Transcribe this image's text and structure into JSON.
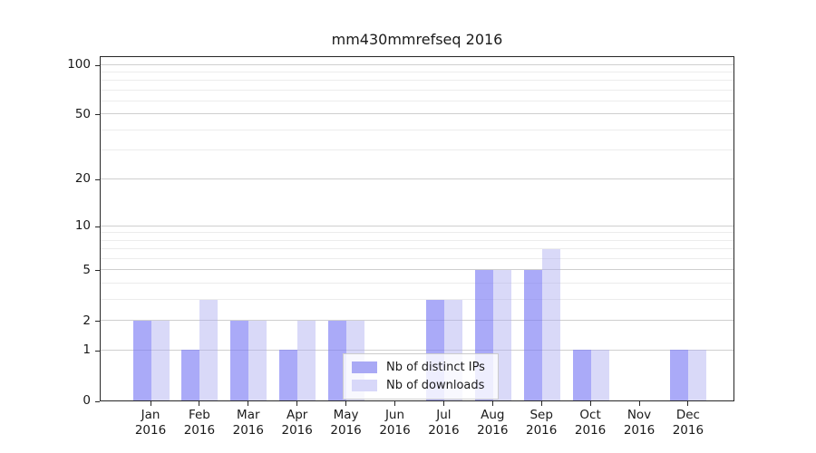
{
  "title": "mm430mmrefseq 2016",
  "chart_data": {
    "type": "bar",
    "title": "mm430mmrefseq 2016",
    "categories": [
      "Jan",
      "Feb",
      "Mar",
      "Apr",
      "May",
      "Jun",
      "Jul",
      "Aug",
      "Sep",
      "Oct",
      "Nov",
      "Dec"
    ],
    "year_label": "2016",
    "series": [
      {
        "name": "Nb of distinct IPs",
        "values": [
          2,
          1,
          2,
          1,
          2,
          0,
          3,
          5,
          5,
          1,
          0,
          1
        ]
      },
      {
        "name": "Nb of downloads",
        "values": [
          2,
          3,
          2,
          2,
          2,
          0,
          3,
          5,
          7,
          1,
          0,
          1
        ]
      }
    ],
    "xlabel": "",
    "ylabel": "",
    "yscale": "log1p",
    "ylim": [
      0,
      113.4
    ],
    "yticks_major": [
      0,
      1,
      2,
      5,
      10,
      20,
      50,
      100
    ],
    "yticks_minor": [
      3,
      4,
      6,
      7,
      8,
      9,
      30,
      40,
      60,
      70,
      80,
      90
    ],
    "grid": "horizontal",
    "legend_position": "lower-center"
  },
  "colors": {
    "bar_fill_ips": "rgba(125,125,245,0.65)",
    "bar_fill_downloads": "rgba(170,170,240,0.45)",
    "legend_swatch_ips": "#a9a9f5",
    "legend_swatch_downloads": "#d8d8f9",
    "gridline_major": "#cfcfcf",
    "gridline_minor": "#ececec",
    "axis": "#262626"
  }
}
